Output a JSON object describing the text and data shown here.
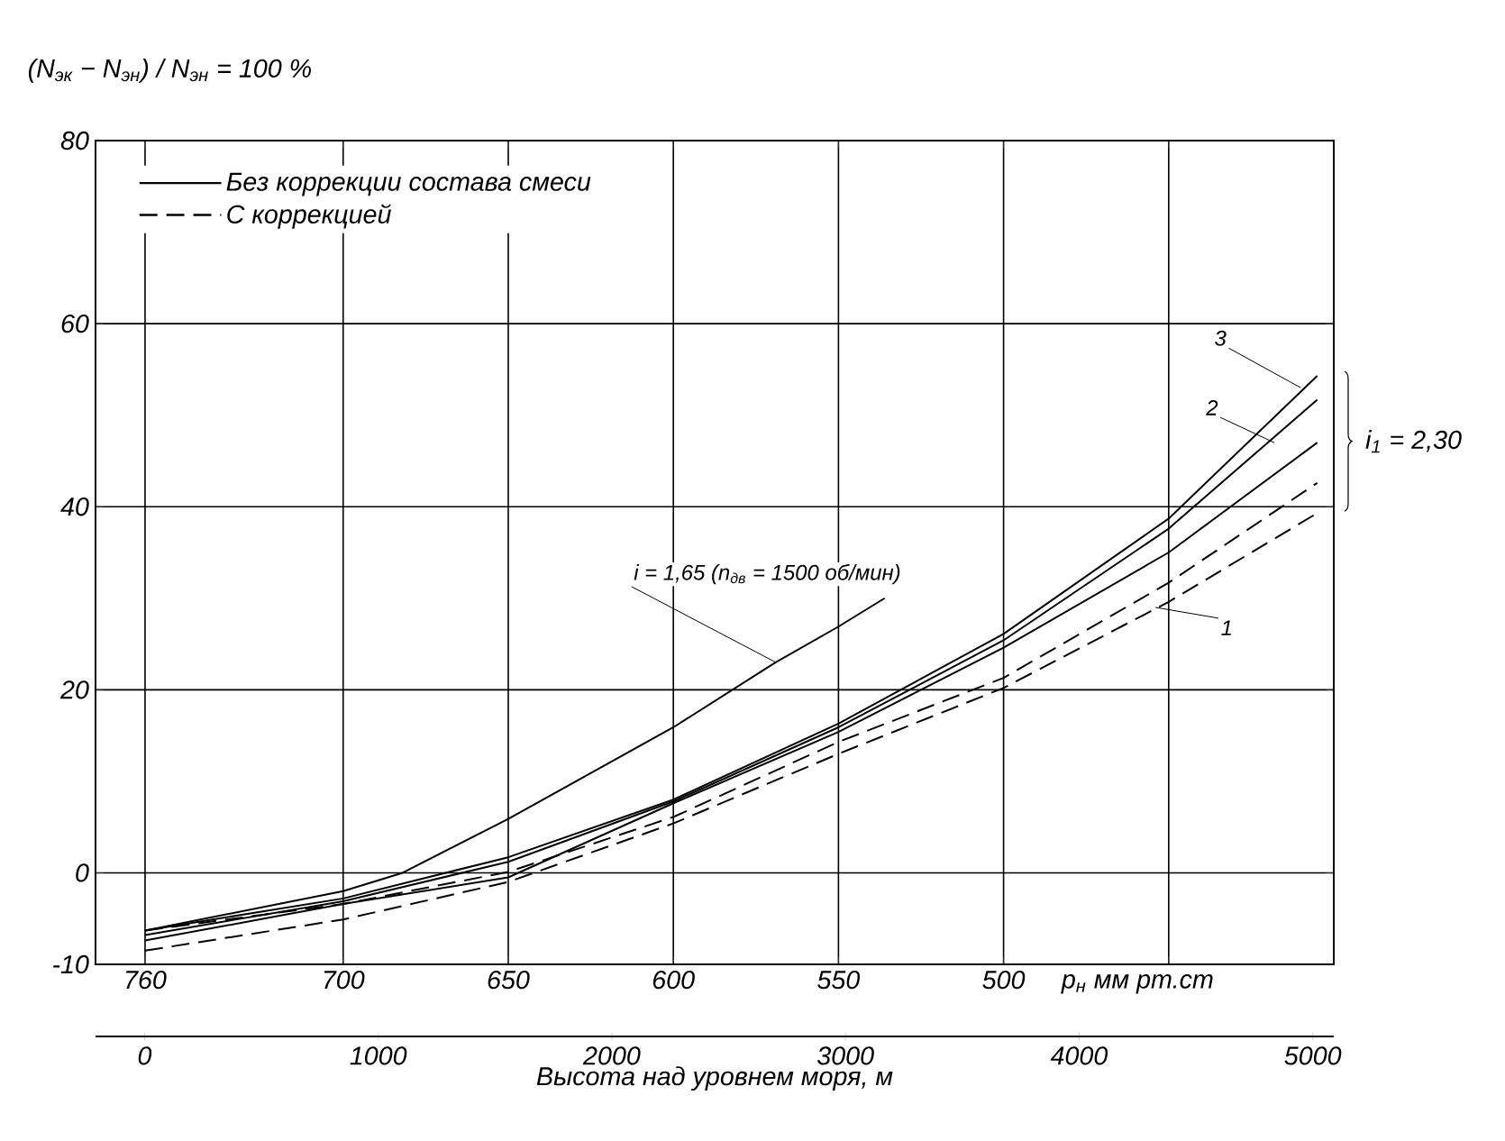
{
  "chart_data": {
    "type": "line",
    "ylabel": "(N$_{эк}$ − N$_{эн}$) / N$_{эн}$ = 100 %",
    "xlabel": "p$_{н}$ мм рт.ст",
    "x2label": "Высота над уровнем моря, м",
    "xlim": [
      775,
      400
    ],
    "xticks": [
      760,
      700,
      650,
      600,
      550,
      500,
      {
        "value": 450,
        "label": null
      }
    ],
    "x2lim": [
      -210,
      5090
    ],
    "x2ticks": [
      0,
      1000,
      2000,
      3000,
      4000,
      5000
    ],
    "ylim": [
      -10,
      80
    ],
    "yticks": [
      -10,
      0,
      20,
      40,
      60,
      80
    ],
    "grid": true,
    "legend": "top left",
    "series": [
      {
        "name": "Без коррекции состава смеси",
        "color": "#000000",
        "line_style": "solid",
        "x": [
          760,
          700,
          650,
          600,
          550,
          500,
          450,
          405
        ],
        "values": [
          -6.3,
          -2.8,
          1.7,
          8.0,
          16.3,
          26.1,
          38.7,
          54.3
        ]
      },
      {
        "color": "#000000",
        "line_style": "solid",
        "x": [
          760,
          700,
          650,
          600,
          550,
          500,
          450,
          405
        ],
        "values": [
          -6.8,
          -3.1,
          1.2,
          7.8,
          15.9,
          25.4,
          37.6,
          51.7
        ]
      },
      {
        "color": "#000000",
        "line_style": "solid",
        "x": [
          760,
          700,
          650,
          600,
          550,
          500,
          450,
          405
        ],
        "values": [
          -7.4,
          -3.4,
          -0.5,
          7.6,
          15.4,
          24.6,
          35.0,
          47.0
        ]
      },
      {
        "name": "С коррекцией",
        "color": "#000000",
        "line_style": "dashed",
        "x": [
          760,
          700,
          650,
          600,
          550,
          500,
          450,
          405
        ],
        "values": [
          -6.3,
          -3.4,
          0.1,
          6.1,
          14.3,
          21.3,
          31.7,
          42.6
        ]
      },
      {
        "color": "#000000",
        "line_style": "dashed",
        "x": [
          760,
          700,
          650,
          600,
          550,
          500,
          450,
          405
        ],
        "values": [
          -8.5,
          -5.1,
          -1.0,
          5.4,
          13.0,
          20.2,
          29.6,
          39.3
        ]
      },
      {
        "color": "#000000",
        "line_style": "solid",
        "x": [
          760,
          700,
          682,
          650,
          600,
          569,
          550,
          536
        ],
        "values": [
          -6.3,
          -2.0,
          0,
          5.9,
          15.9,
          23.0,
          26.9,
          30.0
        ]
      }
    ],
    "annotations": [
      {
        "text": "i = 1,65 (n$_{дв}$ = 1500 об/мин)",
        "x": 569,
        "y": 23.0
      },
      {
        "text": "3",
        "x": 410,
        "y": 53
      },
      {
        "text": "2",
        "x": 418,
        "y": 47
      },
      {
        "text": "1",
        "x": 454,
        "y": 29
      },
      "i$_{1}$ = 2,30"
    ]
  }
}
